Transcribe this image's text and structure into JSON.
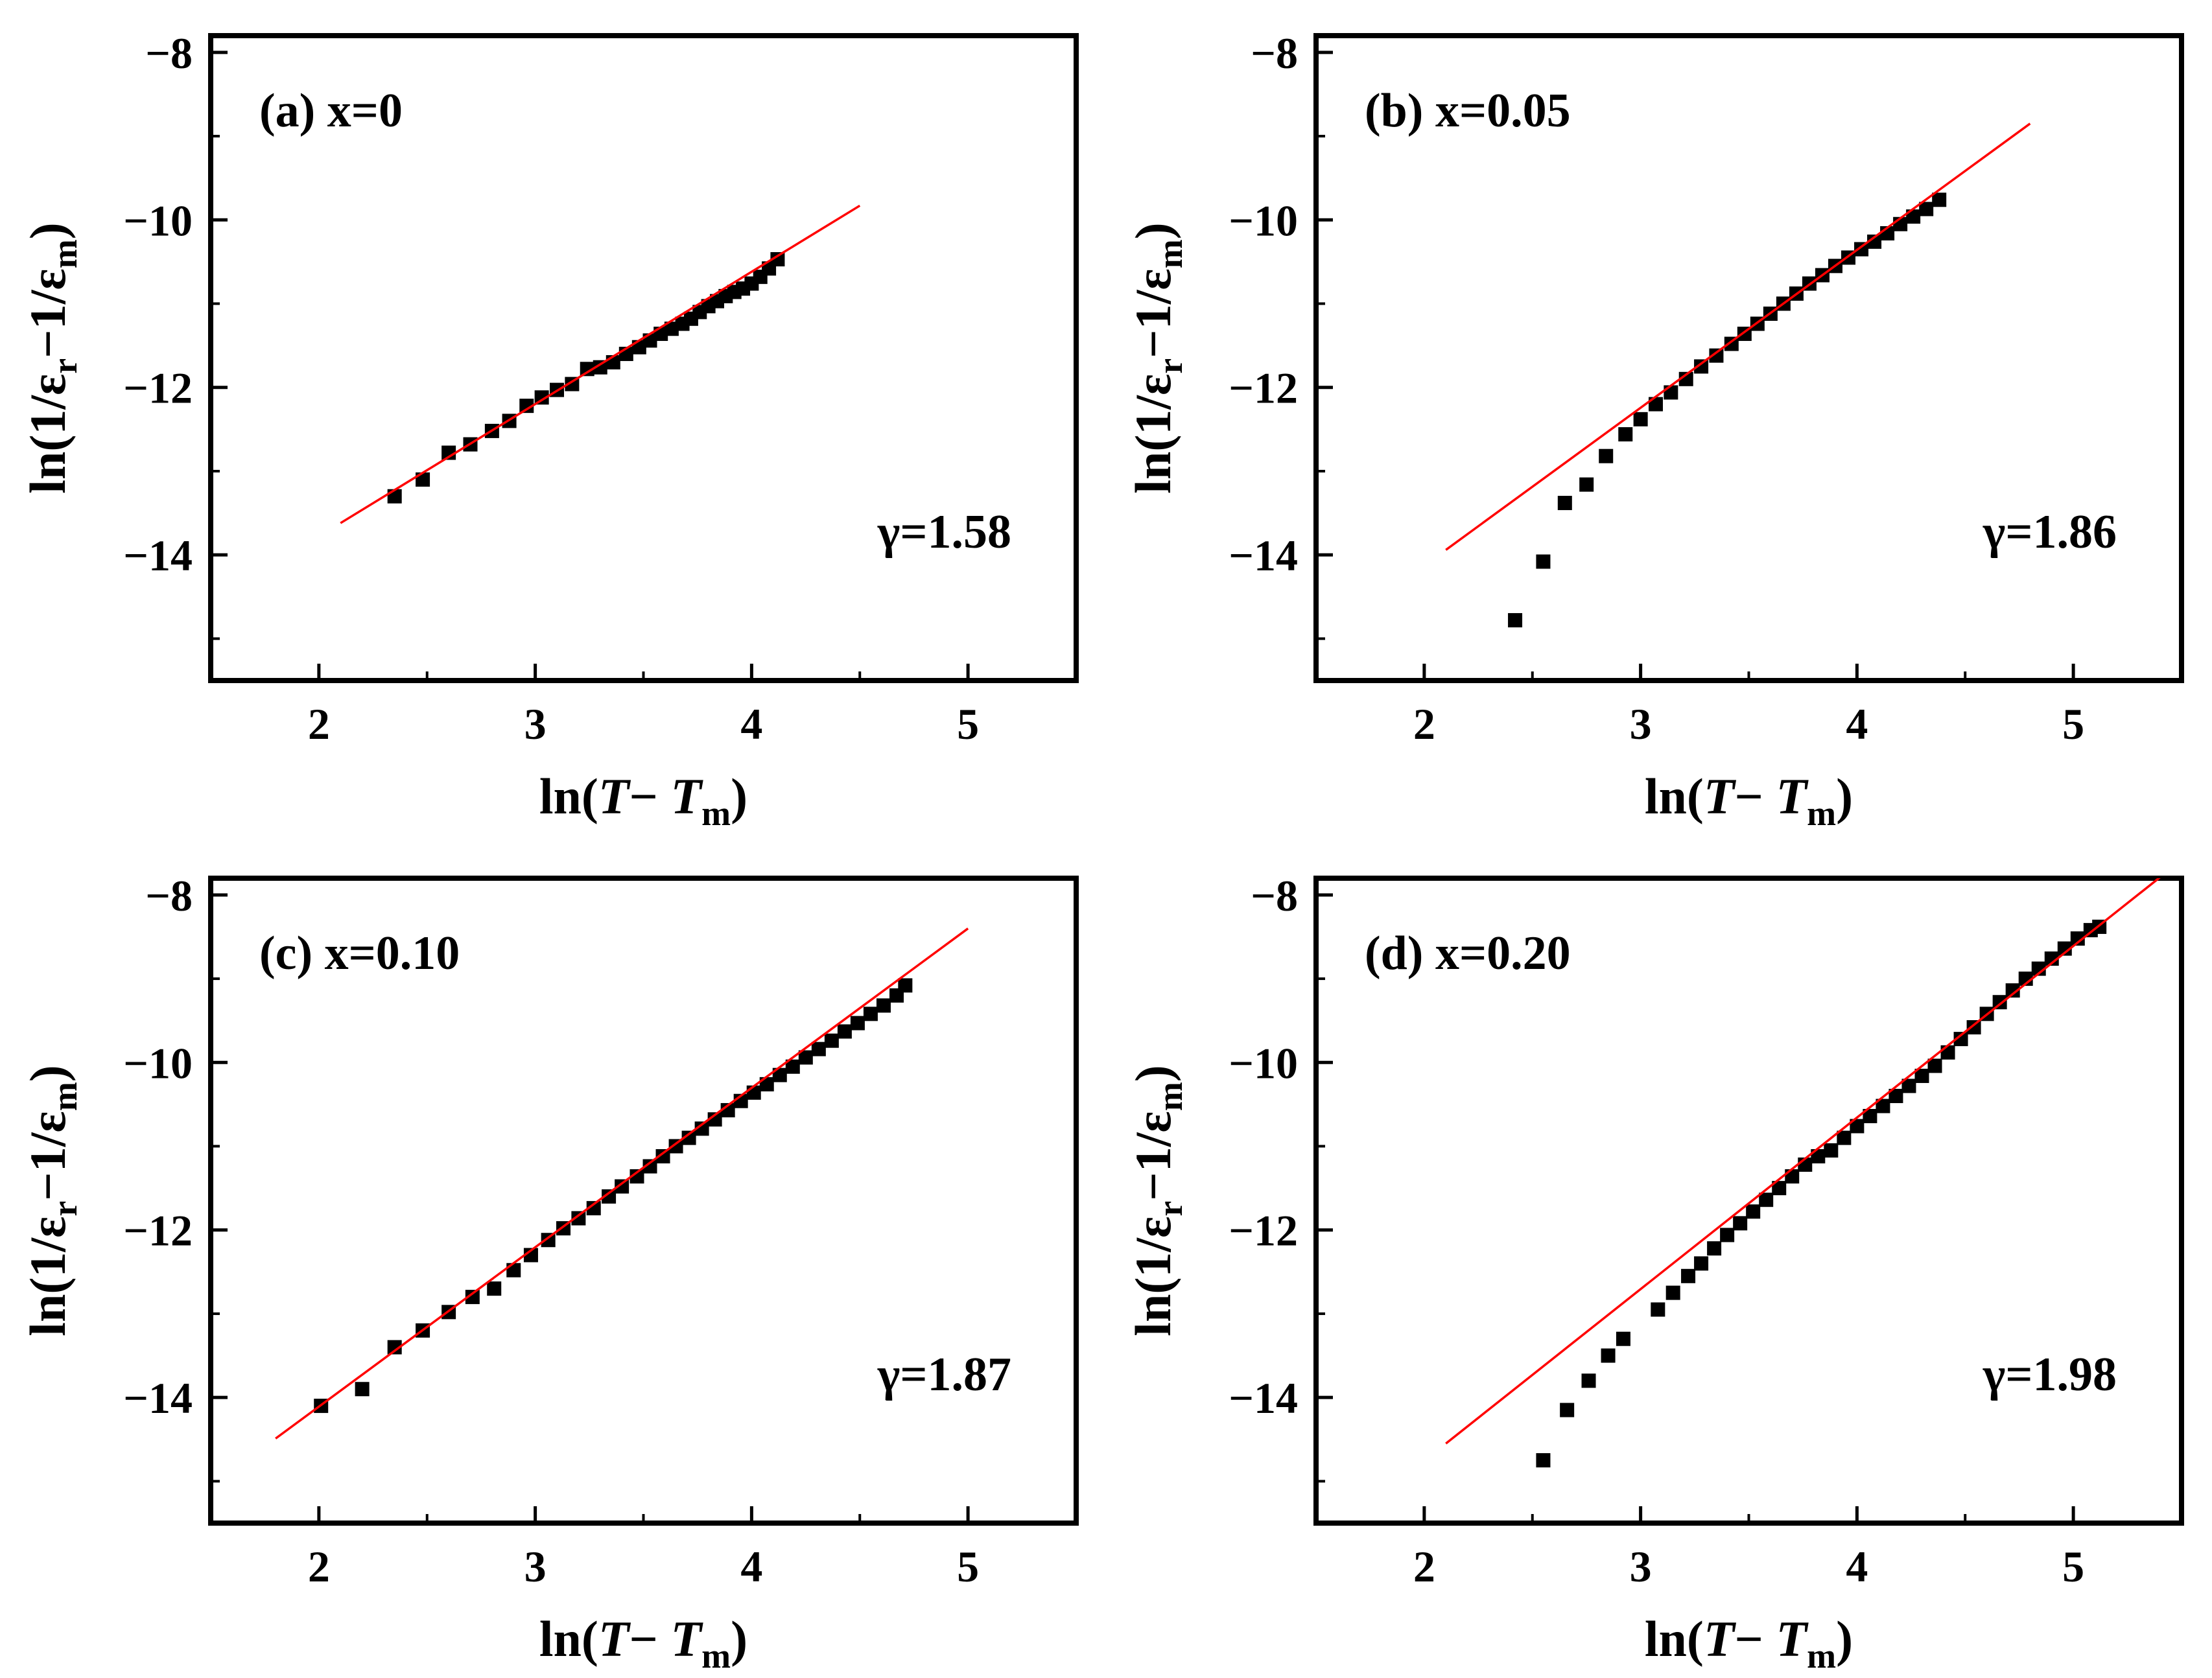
{
  "chart_data": [
    {
      "type": "scatter",
      "panel_label": "(a) x=0",
      "annotation": "γ=1.58",
      "xlabel": "ln(T− Tm)",
      "ylabel": "ln(1/εr−1/εm)",
      "xlim": [
        1.5,
        5.5
      ],
      "ylim": [
        -15.5,
        -7.8
      ],
      "xticks": [
        "2",
        "3",
        "4",
        "5"
      ],
      "yticks": [
        "−8",
        "−10",
        "−12",
        "−14"
      ],
      "series": [
        {
          "name": "data",
          "marker": "square",
          "color": "#000000",
          "points": [
            [
              2.35,
              -13.3
            ],
            [
              2.48,
              -13.1
            ],
            [
              2.6,
              -12.78
            ],
            [
              2.7,
              -12.68
            ],
            [
              2.8,
              -12.52
            ],
            [
              2.88,
              -12.4
            ],
            [
              2.96,
              -12.22
            ],
            [
              3.03,
              -12.12
            ],
            [
              3.1,
              -12.03
            ],
            [
              3.17,
              -11.96
            ],
            [
              3.24,
              -11.78
            ],
            [
              3.3,
              -11.76
            ],
            [
              3.36,
              -11.7
            ],
            [
              3.42,
              -11.6
            ],
            [
              3.48,
              -11.52
            ],
            [
              3.53,
              -11.44
            ],
            [
              3.58,
              -11.36
            ],
            [
              3.63,
              -11.3
            ],
            [
              3.68,
              -11.24
            ],
            [
              3.72,
              -11.18
            ],
            [
              3.76,
              -11.1
            ],
            [
              3.8,
              -11.03
            ],
            [
              3.84,
              -10.97
            ],
            [
              3.88,
              -10.91
            ],
            [
              3.92,
              -10.86
            ],
            [
              3.96,
              -10.82
            ],
            [
              4.0,
              -10.76
            ],
            [
              4.04,
              -10.68
            ],
            [
              4.08,
              -10.58
            ],
            [
              4.12,
              -10.47
            ]
          ]
        },
        {
          "name": "fit",
          "type": "line",
          "color": "#ff0000",
          "points": [
            [
              2.1,
              -13.62
            ],
            [
              4.5,
              -9.83
            ]
          ]
        }
      ]
    },
    {
      "type": "scatter",
      "panel_label": "(b) x=0.05",
      "annotation": "γ=1.86",
      "xlabel": "ln(T− Tm)",
      "ylabel": "ln(1/εr−1/εm)",
      "xlim": [
        1.5,
        5.5
      ],
      "ylim": [
        -15.5,
        -7.8
      ],
      "xticks": [
        "2",
        "3",
        "4",
        "5"
      ],
      "yticks": [
        "−8",
        "−10",
        "−12",
        "−14"
      ],
      "series": [
        {
          "name": "data",
          "marker": "square",
          "color": "#000000",
          "points": [
            [
              2.42,
              -14.78
            ],
            [
              2.55,
              -14.08
            ],
            [
              2.65,
              -13.38
            ],
            [
              2.75,
              -13.16
            ],
            [
              2.84,
              -12.82
            ],
            [
              2.93,
              -12.56
            ],
            [
              3.0,
              -12.38
            ],
            [
              3.07,
              -12.2
            ],
            [
              3.14,
              -12.06
            ],
            [
              3.21,
              -11.9
            ],
            [
              3.28,
              -11.75
            ],
            [
              3.35,
              -11.62
            ],
            [
              3.42,
              -11.48
            ],
            [
              3.48,
              -11.36
            ],
            [
              3.54,
              -11.24
            ],
            [
              3.6,
              -11.12
            ],
            [
              3.66,
              -11.0
            ],
            [
              3.72,
              -10.88
            ],
            [
              3.78,
              -10.76
            ],
            [
              3.84,
              -10.66
            ],
            [
              3.9,
              -10.55
            ],
            [
              3.96,
              -10.45
            ],
            [
              4.02,
              -10.35
            ],
            [
              4.08,
              -10.26
            ],
            [
              4.14,
              -10.16
            ],
            [
              4.2,
              -10.05
            ],
            [
              4.26,
              -9.96
            ],
            [
              4.32,
              -9.87
            ],
            [
              4.38,
              -9.76
            ]
          ]
        },
        {
          "name": "fit",
          "type": "line",
          "color": "#ff0000",
          "points": [
            [
              2.1,
              -13.94
            ],
            [
              4.8,
              -8.85
            ]
          ]
        }
      ]
    },
    {
      "type": "scatter",
      "panel_label": "(c) x=0.10",
      "annotation": "γ=1.87",
      "xlabel": "ln(T− Tm)",
      "ylabel": "ln(1/εr−1/εm)",
      "xlim": [
        1.5,
        5.5
      ],
      "ylim": [
        -15.5,
        -7.8
      ],
      "xticks": [
        "2",
        "3",
        "4",
        "5"
      ],
      "yticks": [
        "−8",
        "−10",
        "−12",
        "−14"
      ],
      "series": [
        {
          "name": "data",
          "marker": "square",
          "color": "#000000",
          "points": [
            [
              2.01,
              -14.1
            ],
            [
              2.2,
              -13.9
            ],
            [
              2.35,
              -13.4
            ],
            [
              2.48,
              -13.2
            ],
            [
              2.6,
              -12.98
            ],
            [
              2.71,
              -12.8
            ],
            [
              2.81,
              -12.7
            ],
            [
              2.9,
              -12.48
            ],
            [
              2.98,
              -12.3
            ],
            [
              3.06,
              -12.12
            ],
            [
              3.13,
              -11.98
            ],
            [
              3.2,
              -11.86
            ],
            [
              3.27,
              -11.74
            ],
            [
              3.34,
              -11.6
            ],
            [
              3.4,
              -11.48
            ],
            [
              3.47,
              -11.36
            ],
            [
              3.53,
              -11.24
            ],
            [
              3.59,
              -11.12
            ],
            [
              3.65,
              -11.0
            ],
            [
              3.71,
              -10.9
            ],
            [
              3.77,
              -10.79
            ],
            [
              3.83,
              -10.68
            ],
            [
              3.89,
              -10.57
            ],
            [
              3.95,
              -10.46
            ],
            [
              4.01,
              -10.36
            ],
            [
              4.07,
              -10.26
            ],
            [
              4.13,
              -10.15
            ],
            [
              4.19,
              -10.05
            ],
            [
              4.25,
              -9.94
            ],
            [
              4.31,
              -9.84
            ],
            [
              4.37,
              -9.74
            ],
            [
              4.43,
              -9.63
            ],
            [
              4.49,
              -9.53
            ],
            [
              4.55,
              -9.42
            ],
            [
              4.61,
              -9.32
            ],
            [
              4.67,
              -9.2
            ],
            [
              4.71,
              -9.08
            ]
          ]
        },
        {
          "name": "fit",
          "type": "line",
          "color": "#ff0000",
          "points": [
            [
              1.8,
              -14.49
            ],
            [
              5.0,
              -8.4
            ]
          ]
        }
      ]
    },
    {
      "type": "scatter",
      "panel_label": "(d) x=0.20",
      "annotation": "γ=1.98",
      "xlabel": "ln(T− Tm)",
      "ylabel": "ln(1/εr−1/εm)",
      "xlim": [
        1.5,
        5.5
      ],
      "ylim": [
        -15.5,
        -7.8
      ],
      "xticks": [
        "2",
        "3",
        "4",
        "5"
      ],
      "yticks": [
        "−8",
        "−10",
        "−12",
        "−14"
      ],
      "series": [
        {
          "name": "data",
          "marker": "square",
          "color": "#000000",
          "points": [
            [
              2.55,
              -14.75
            ],
            [
              2.66,
              -14.15
            ],
            [
              2.76,
              -13.8
            ],
            [
              2.85,
              -13.5
            ],
            [
              2.92,
              -13.3
            ],
            [
              3.08,
              -12.95
            ],
            [
              3.15,
              -12.75
            ],
            [
              3.22,
              -12.55
            ],
            [
              3.28,
              -12.4
            ],
            [
              3.34,
              -12.22
            ],
            [
              3.4,
              -12.06
            ],
            [
              3.46,
              -11.92
            ],
            [
              3.52,
              -11.78
            ],
            [
              3.58,
              -11.64
            ],
            [
              3.64,
              -11.5
            ],
            [
              3.7,
              -11.36
            ],
            [
              3.76,
              -11.22
            ],
            [
              3.82,
              -11.12
            ],
            [
              3.88,
              -11.05
            ],
            [
              3.94,
              -10.9
            ],
            [
              4.0,
              -10.76
            ],
            [
              4.06,
              -10.64
            ],
            [
              4.12,
              -10.52
            ],
            [
              4.18,
              -10.4
            ],
            [
              4.24,
              -10.28
            ],
            [
              4.3,
              -10.16
            ],
            [
              4.36,
              -10.04
            ],
            [
              4.42,
              -9.88
            ],
            [
              4.48,
              -9.72
            ],
            [
              4.54,
              -9.58
            ],
            [
              4.6,
              -9.42
            ],
            [
              4.66,
              -9.28
            ],
            [
              4.72,
              -9.14
            ],
            [
              4.78,
              -9.0
            ],
            [
              4.84,
              -8.88
            ],
            [
              4.9,
              -8.76
            ],
            [
              4.96,
              -8.64
            ],
            [
              5.02,
              -8.52
            ],
            [
              5.08,
              -8.42
            ],
            [
              5.12,
              -8.38
            ]
          ]
        },
        {
          "name": "fit",
          "type": "line",
          "color": "#ff0000",
          "points": [
            [
              2.1,
              -14.55
            ],
            [
              5.4,
              -7.79
            ]
          ]
        }
      ]
    }
  ]
}
